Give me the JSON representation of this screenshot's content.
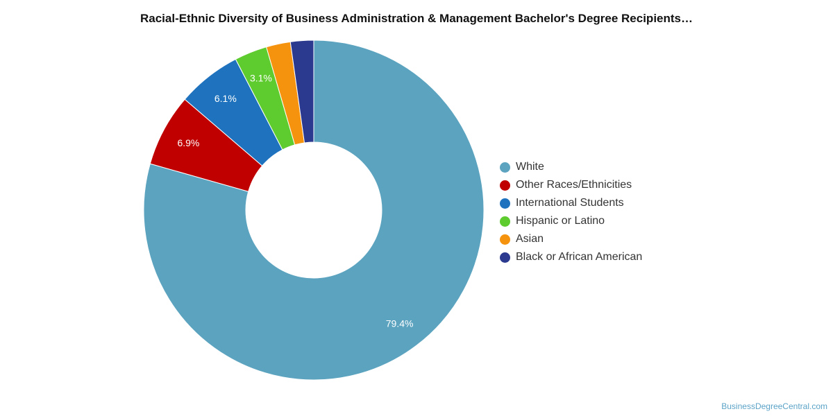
{
  "title": "Racial-Ethnic Diversity of Business Administration & Management Bachelor's Degree Recipients…",
  "credit": "BusinessDegreeCentral.com",
  "chart_data": {
    "type": "pie",
    "donut": true,
    "legend_position": "right",
    "slices": [
      {
        "name": "White",
        "value": 79.4,
        "label": "79.4%",
        "color": "#5ba3bf"
      },
      {
        "name": "Other Races/Ethnicities",
        "value": 6.9,
        "label": "6.9%",
        "color": "#c00000"
      },
      {
        "name": "International Students",
        "value": 6.1,
        "label": "6.1%",
        "color": "#1f73be"
      },
      {
        "name": "Hispanic or Latino",
        "value": 3.1,
        "label": "3.1%",
        "color": "#5ecb2e"
      },
      {
        "name": "Asian",
        "value": 2.3,
        "label": "",
        "color": "#f5930f"
      },
      {
        "name": "Black or African American",
        "value": 2.2,
        "label": "",
        "color": "#2b3a8f"
      }
    ]
  }
}
